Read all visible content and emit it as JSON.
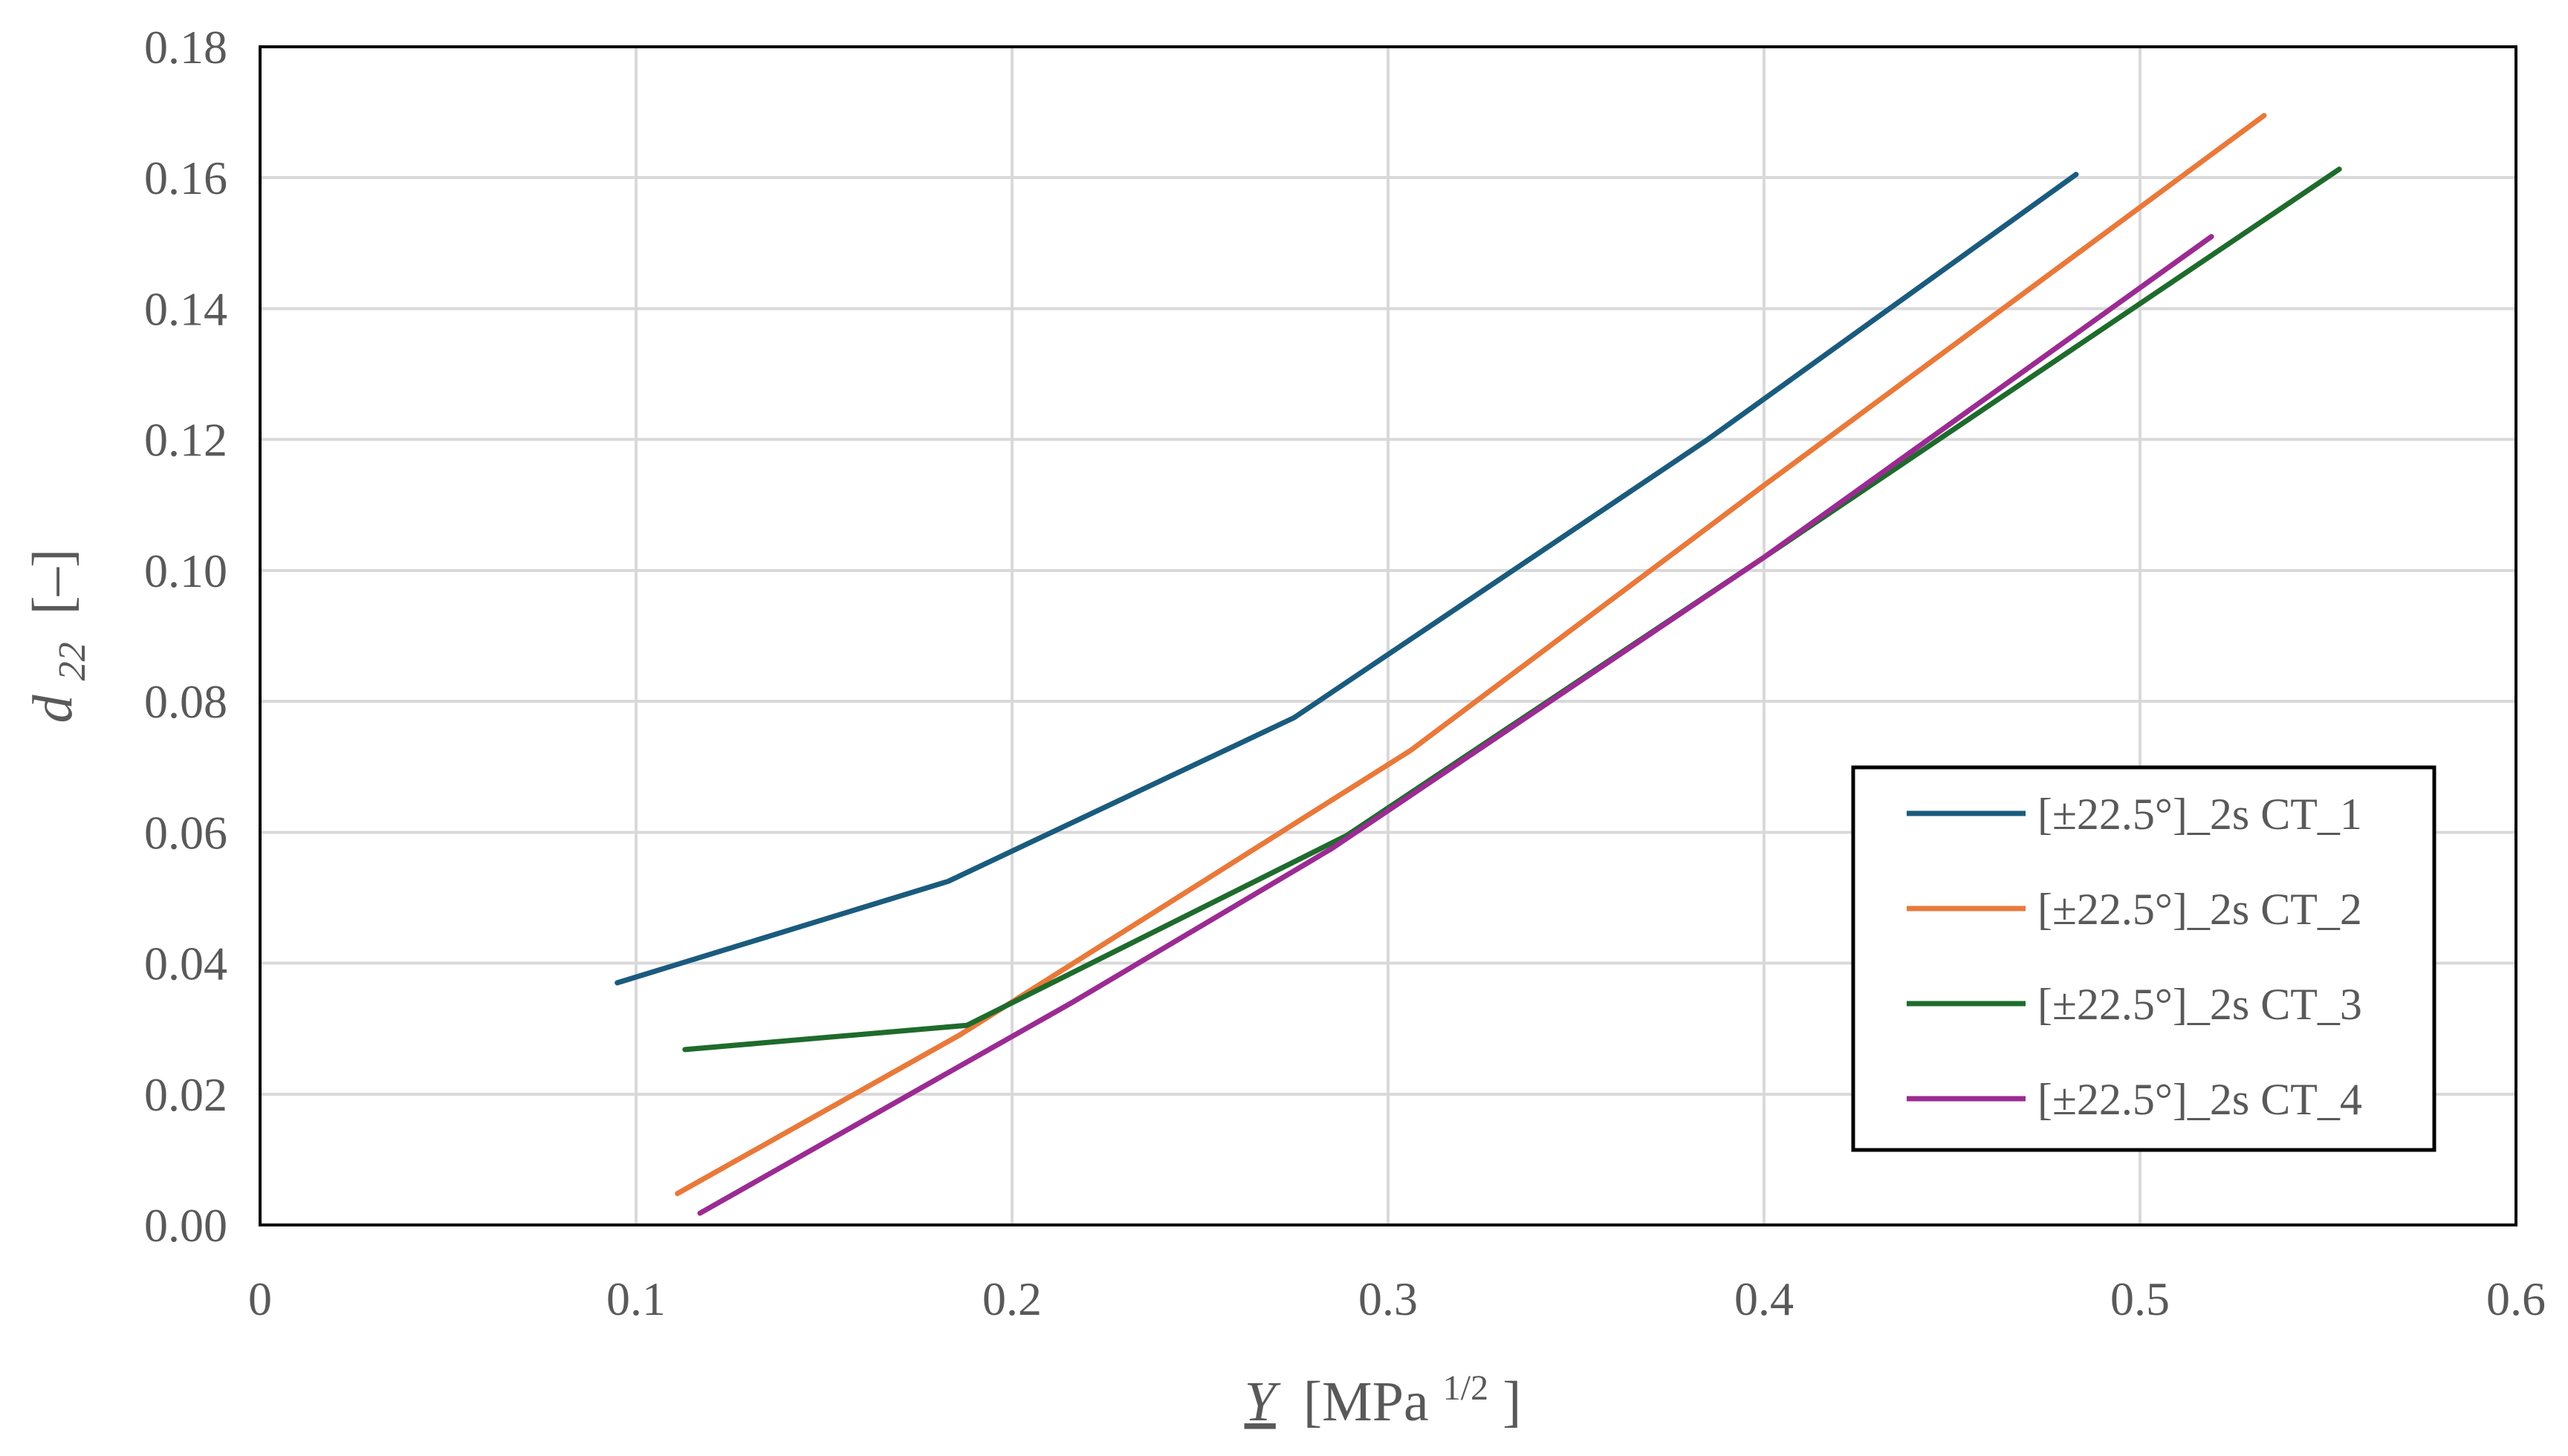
{
  "chart_data": {
    "type": "line",
    "title": "",
    "xlabel": {
      "symbol": "Y",
      "unit_prefix": "[MPa",
      "unit_exponent": "1/2",
      "unit_suffix": "]"
    },
    "ylabel": {
      "symbol": "d",
      "subscript": "22",
      "unit": "[–]"
    },
    "xlim": [
      0,
      0.6
    ],
    "ylim": [
      0,
      0.18
    ],
    "x_ticks": [
      0,
      0.1,
      0.2,
      0.3,
      0.4,
      0.5,
      0.6
    ],
    "x_tick_labels": [
      "0",
      "0.1",
      "0.2",
      "0.3",
      "0.4",
      "0.5",
      "0.6"
    ],
    "y_ticks": [
      0,
      0.02,
      0.04,
      0.06,
      0.08,
      0.1,
      0.12,
      0.14,
      0.16,
      0.18
    ],
    "y_tick_labels": [
      "0.00",
      "0.02",
      "0.04",
      "0.06",
      "0.08",
      "0.10",
      "0.12",
      "0.14",
      "0.16",
      "0.18"
    ],
    "grid": true,
    "legend_position": "bottom-right",
    "series": [
      {
        "name": "[±22.5°]_2s CT_1",
        "color": "#1a5b7e",
        "x": [
          0.095,
          0.183,
          0.275,
          0.385,
          0.483
        ],
        "y": [
          0.037,
          0.0525,
          0.0775,
          0.12,
          0.1605
        ]
      },
      {
        "name": "[±22.5°]_2s CT_2",
        "color": "#e9793a",
        "x": [
          0.111,
          0.186,
          0.306,
          0.4,
          0.533
        ],
        "y": [
          0.0048,
          0.029,
          0.0725,
          0.113,
          0.1695
        ]
      },
      {
        "name": "[±22.5°]_2s CT_3",
        "color": "#1e6b2c",
        "x": [
          0.113,
          0.188,
          0.289,
          0.4,
          0.553
        ],
        "y": [
          0.0268,
          0.0305,
          0.0595,
          0.102,
          0.1613
        ]
      },
      {
        "name": "[±22.5°]_2s CT_4",
        "color": "#9b2b92",
        "x": [
          0.117,
          0.216,
          0.285,
          0.4,
          0.519
        ],
        "y": [
          0.0018,
          0.034,
          0.0575,
          0.102,
          0.151
        ]
      }
    ]
  }
}
